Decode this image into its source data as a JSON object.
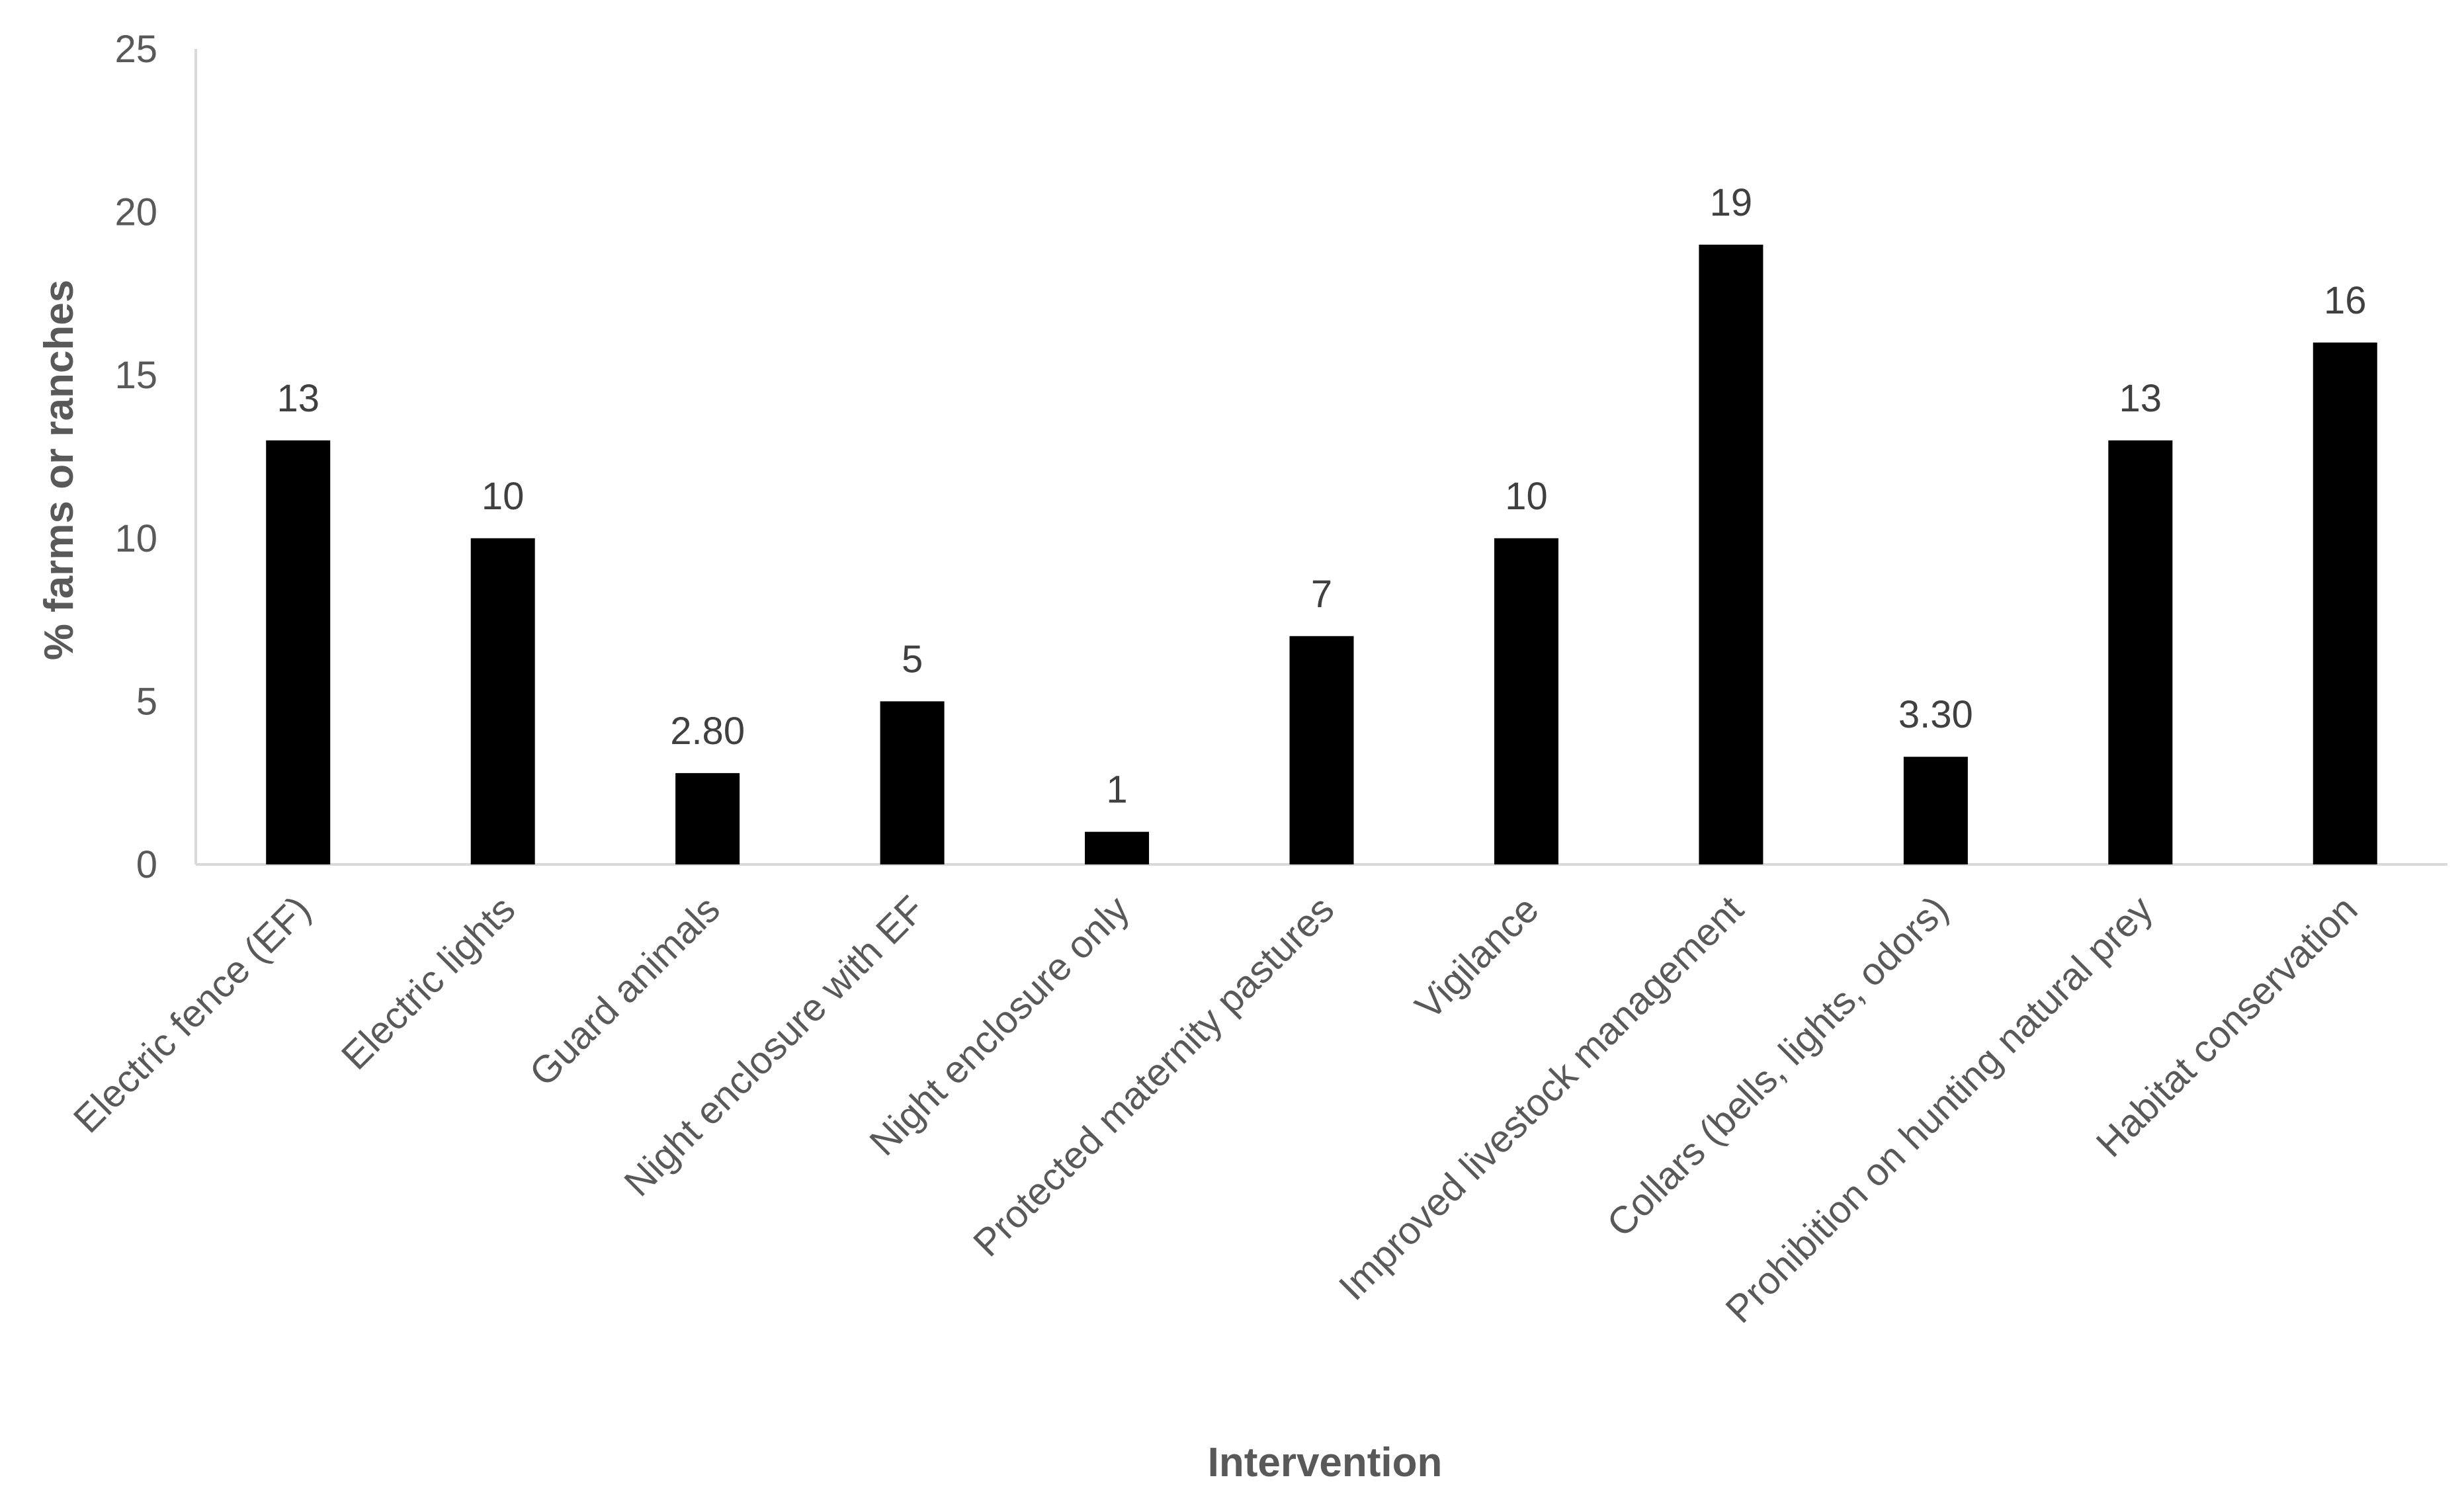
{
  "chart_data": {
    "type": "bar",
    "title": "",
    "xlabel": "Intervention",
    "ylabel": "% farms or ranches",
    "categories": [
      "Electric fence (EF)",
      "Electric lights",
      "Guard animals",
      "Night enclosure with EF",
      "Night enclosure only",
      "Protected maternity pastures",
      "Vigilance",
      "Improved livestock management",
      "Collars (bells, lights, odors)",
      "Prohibition on hunting natural prey",
      "Habitat conservation"
    ],
    "values": [
      13,
      10,
      2.8,
      5,
      1,
      7,
      10,
      19,
      3.3,
      13,
      16
    ],
    "value_labels": [
      "13",
      "10",
      "2.80",
      "5",
      "1",
      "7",
      "10",
      "19",
      "3.30",
      "13",
      "16"
    ],
    "ylim": [
      0,
      25
    ],
    "yticks": [
      "0",
      "5",
      "10",
      "15",
      "20",
      "25"
    ],
    "grid": false,
    "legend": "none",
    "colors": {
      "bar": "#000000",
      "axis": "#d9d9d9",
      "text": "#595959"
    }
  }
}
